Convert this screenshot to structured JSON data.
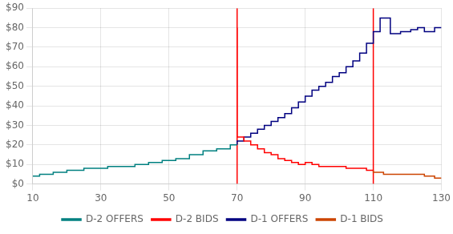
{
  "chart_data": {
    "type": "line",
    "series": [
      {
        "name": "D-2 OFFERS",
        "color": "#008080",
        "x": [
          10,
          10,
          12,
          12,
          14,
          14,
          16,
          16,
          18,
          18,
          20,
          20,
          22,
          22,
          25,
          25,
          28,
          28,
          32,
          32,
          36,
          36,
          40,
          40,
          44,
          44,
          48,
          48,
          52,
          52,
          56,
          56,
          60,
          60,
          64,
          64,
          68,
          68,
          70
        ],
        "values": [
          4,
          4,
          4,
          5,
          5,
          5,
          5,
          6,
          6,
          6,
          6,
          7,
          7,
          7,
          7,
          8,
          8,
          8,
          8,
          9,
          9,
          9,
          9,
          10,
          10,
          11,
          11,
          12,
          12,
          13,
          13,
          15,
          15,
          17,
          17,
          18,
          18,
          20,
          20
        ]
      },
      {
        "name": "D-2 BIDS",
        "color": "#FF0000",
        "x": [
          70,
          70,
          72,
          72,
          74,
          74,
          76,
          76,
          78,
          78,
          80,
          80,
          82,
          82,
          84,
          84,
          86,
          86,
          88,
          88,
          90,
          90,
          92,
          92,
          94,
          94,
          96,
          96,
          98,
          98,
          100,
          100,
          102,
          102,
          104,
          104,
          106,
          106,
          108,
          108,
          110
        ],
        "values": [
          80,
          24,
          24,
          22,
          22,
          20,
          20,
          18,
          18,
          16,
          16,
          15,
          15,
          13,
          13,
          12,
          12,
          11,
          11,
          10,
          10,
          11,
          11,
          10,
          10,
          9,
          9,
          9,
          9,
          9,
          9,
          9,
          9,
          8,
          8,
          8,
          8,
          8,
          8,
          7,
          7
        ]
      },
      {
        "name": "D-1 OFFERS",
        "color": "#000080",
        "x": [
          70,
          70,
          72,
          72,
          74,
          74,
          76,
          76,
          78,
          78,
          80,
          80,
          82,
          82,
          84,
          84,
          86,
          86,
          88,
          88,
          90,
          90,
          92,
          92,
          94,
          94,
          96,
          96,
          98,
          98,
          100,
          100,
          102,
          102,
          104,
          104,
          106,
          106,
          108,
          108,
          110,
          110,
          112,
          112,
          115,
          115,
          118,
          118,
          121,
          121,
          123,
          123,
          125,
          125,
          128,
          128,
          130
        ],
        "values": [
          20,
          22,
          22,
          24,
          24,
          26,
          26,
          28,
          28,
          30,
          30,
          32,
          32,
          34,
          34,
          36,
          36,
          39,
          39,
          42,
          42,
          45,
          45,
          48,
          48,
          50,
          50,
          52,
          52,
          55,
          55,
          57,
          57,
          60,
          60,
          63,
          63,
          67,
          67,
          72,
          72,
          78,
          78,
          85,
          85,
          77,
          77,
          78,
          78,
          79,
          79,
          80,
          80,
          78,
          78,
          80,
          80
        ]
      },
      {
        "name": "D-1 BIDS",
        "color": "#CC4400",
        "x": [
          110,
          110,
          113,
          113,
          116,
          116,
          119,
          119,
          122,
          122,
          125,
          125,
          128,
          128,
          130
        ],
        "values": [
          7,
          6,
          6,
          5,
          5,
          5,
          5,
          5,
          5,
          5,
          5,
          4,
          4,
          3,
          3
        ]
      }
    ],
    "vlines": [
      70,
      110
    ],
    "xlim": [
      10,
      130
    ],
    "xticks": [
      10,
      30,
      50,
      70,
      90,
      110,
      130
    ],
    "ylim": [
      0,
      90
    ],
    "yticks": [
      {
        "value": 0,
        "label": "$0"
      },
      {
        "value": 10,
        "label": "$10"
      },
      {
        "value": 20,
        "label": "$20"
      },
      {
        "value": 30,
        "label": "$30"
      },
      {
        "value": 40,
        "label": "$40"
      },
      {
        "value": 50,
        "label": "$50"
      },
      {
        "value": 60,
        "label": "$60"
      },
      {
        "value": 70,
        "label": "$70"
      },
      {
        "value": 80,
        "label": "$80"
      },
      {
        "value": 90,
        "label": "$90"
      }
    ],
    "grid": true,
    "legend": "bottom"
  }
}
